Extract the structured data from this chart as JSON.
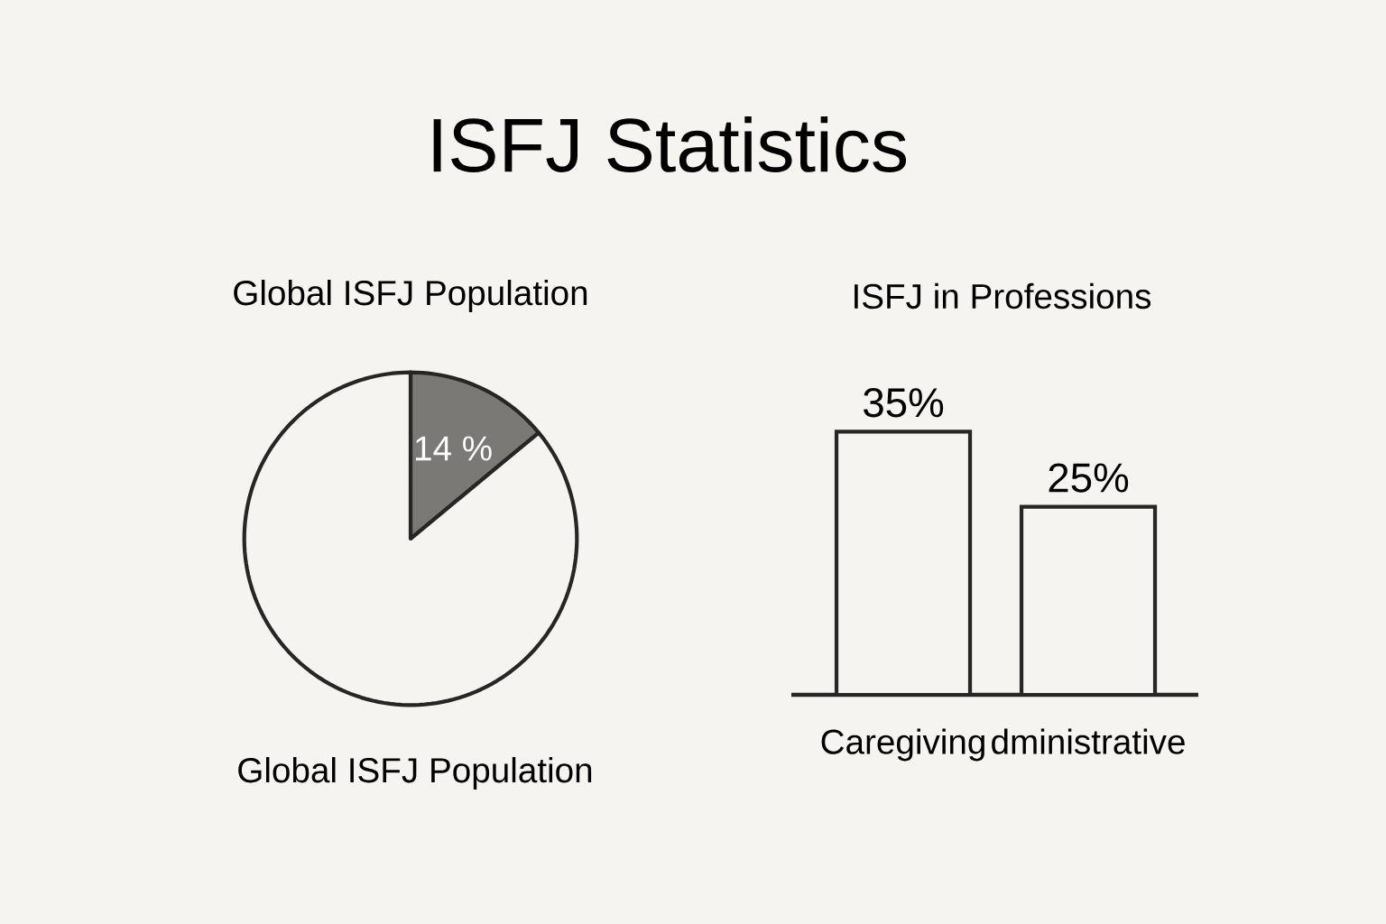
{
  "chart_data": [
    {
      "type": "pie",
      "title": "ISFJ Statistics",
      "subtitle": "Global ISFJ Population",
      "annotations": [
        "Global ISFJ Population"
      ],
      "categories": [
        null,
        null
      ],
      "values": [
        14,
        86
      ],
      "colors": [
        "#7a7976",
        "#f5f4f0"
      ],
      "value_labels": [
        "14 %",
        null
      ]
    },
    {
      "type": "bar",
      "title": "ISFJ in Professions",
      "categories": [
        "Caregiving",
        "dministrative"
      ],
      "values": [
        35,
        25
      ],
      "color": "#f5f4f0",
      "value_labels": [
        "35%",
        "25%"
      ]
    }
  ]
}
